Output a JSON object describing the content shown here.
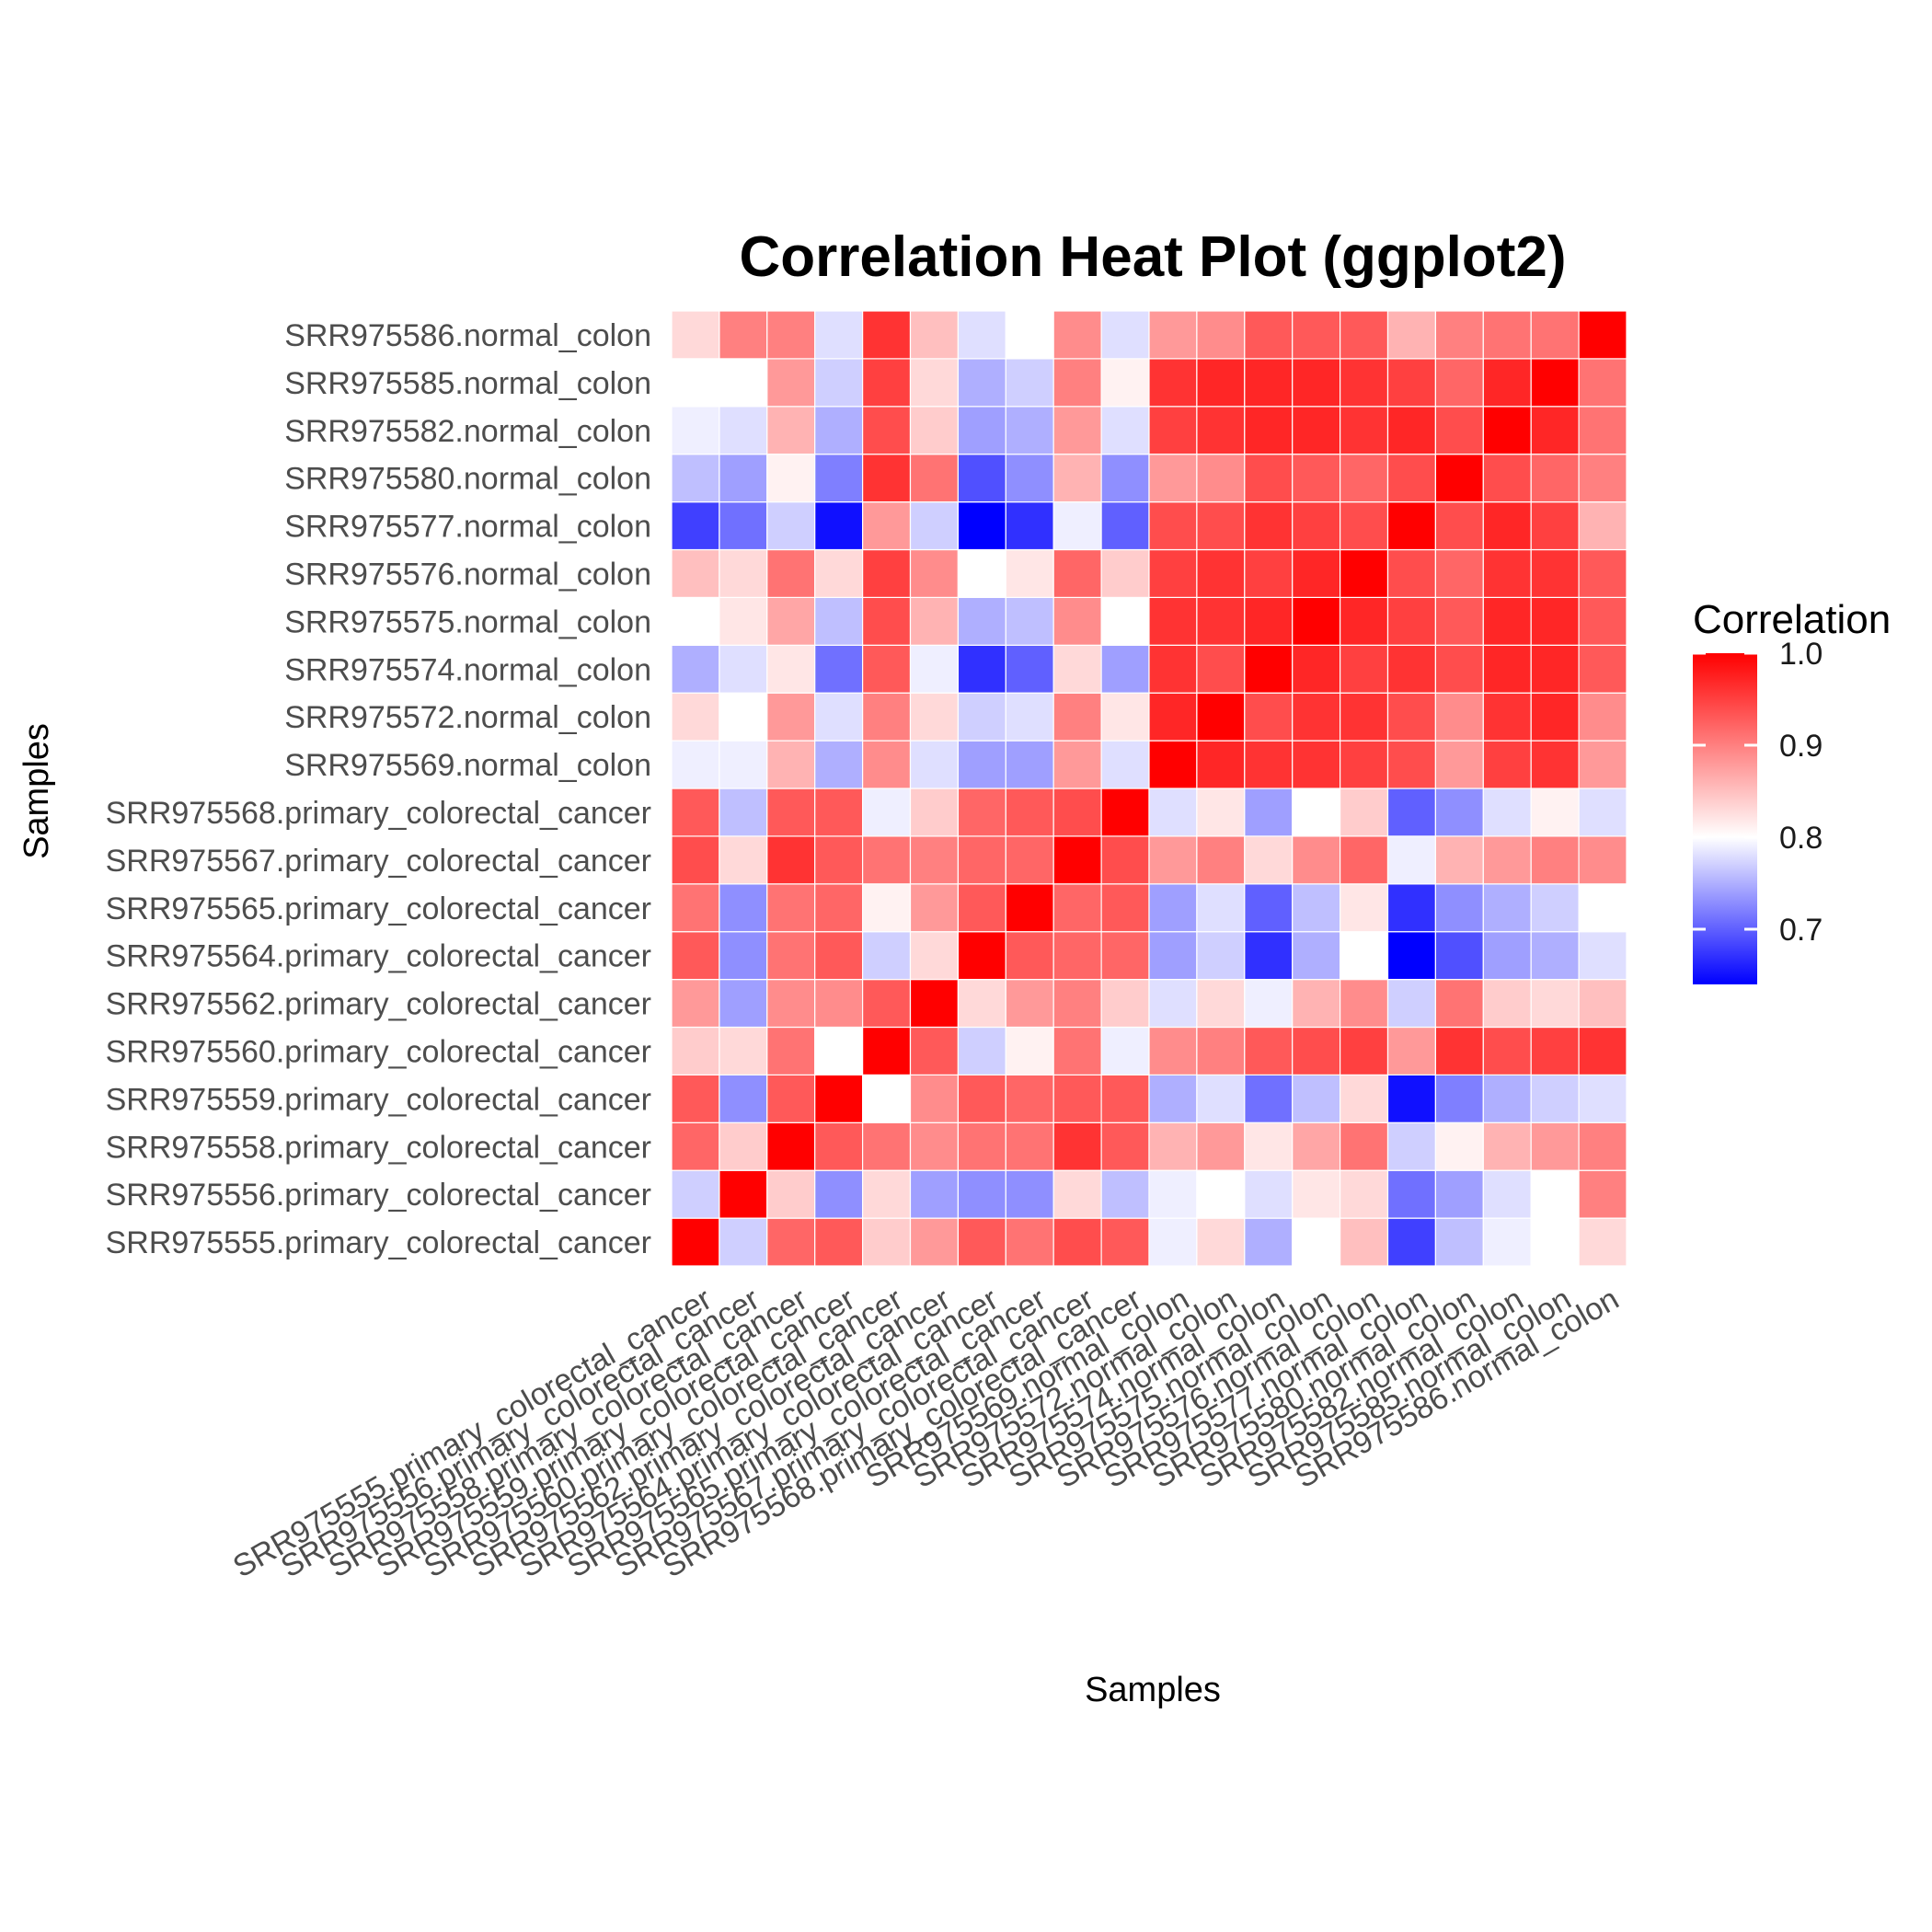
{
  "chart_data": {
    "type": "heatmap",
    "title": "Correlation Heat Plot (ggplot2)",
    "xlabel": "Samples",
    "ylabel": "Samples",
    "samples": [
      "SRR975555.primary_colorectal_cancer",
      "SRR975556.primary_colorectal_cancer",
      "SRR975558.primary_colorectal_cancer",
      "SRR975559.primary_colorectal_cancer",
      "SRR975560.primary_colorectal_cancer",
      "SRR975562.primary_colorectal_cancer",
      "SRR975564.primary_colorectal_cancer",
      "SRR975565.primary_colorectal_cancer",
      "SRR975567.primary_colorectal_cancer",
      "SRR975568.primary_colorectal_cancer",
      "SRR975569.normal_colon",
      "SRR975572.normal_colon",
      "SRR975574.normal_colon",
      "SRR975575.normal_colon",
      "SRR975576.normal_colon",
      "SRR975577.normal_colon",
      "SRR975580.normal_colon",
      "SRR975582.normal_colon",
      "SRR975585.normal_colon",
      "SRR975586.normal_colon"
    ],
    "values": [
      [
        1.0,
        0.77,
        0.92,
        0.93,
        0.84,
        0.88,
        0.93,
        0.91,
        0.94,
        0.93,
        0.79,
        0.83,
        0.75,
        0.8,
        0.85,
        0.68,
        0.76,
        0.79,
        0.8,
        0.83
      ],
      [
        0.77,
        1.0,
        0.84,
        0.73,
        0.83,
        0.74,
        0.73,
        0.73,
        0.83,
        0.76,
        0.79,
        0.8,
        0.78,
        0.82,
        0.83,
        0.71,
        0.74,
        0.78,
        0.8,
        0.9
      ],
      [
        0.92,
        0.84,
        1.0,
        0.93,
        0.91,
        0.89,
        0.91,
        0.91,
        0.96,
        0.93,
        0.86,
        0.88,
        0.82,
        0.87,
        0.91,
        0.77,
        0.81,
        0.86,
        0.88,
        0.9
      ],
      [
        0.93,
        0.73,
        0.93,
        1.0,
        0.8,
        0.89,
        0.93,
        0.92,
        0.93,
        0.93,
        0.75,
        0.78,
        0.71,
        0.76,
        0.83,
        0.65,
        0.72,
        0.75,
        0.77,
        0.78
      ],
      [
        0.84,
        0.83,
        0.91,
        0.8,
        1.0,
        0.93,
        0.77,
        0.81,
        0.91,
        0.79,
        0.89,
        0.9,
        0.93,
        0.94,
        0.95,
        0.88,
        0.96,
        0.94,
        0.95,
        0.96
      ],
      [
        0.88,
        0.74,
        0.89,
        0.89,
        0.93,
        1.0,
        0.83,
        0.88,
        0.9,
        0.84,
        0.78,
        0.83,
        0.79,
        0.86,
        0.89,
        0.77,
        0.91,
        0.84,
        0.83,
        0.85
      ],
      [
        0.93,
        0.73,
        0.91,
        0.93,
        0.77,
        0.83,
        1.0,
        0.93,
        0.92,
        0.92,
        0.74,
        0.77,
        0.67,
        0.75,
        0.8,
        0.64,
        0.69,
        0.74,
        0.75,
        0.78
      ],
      [
        0.91,
        0.73,
        0.91,
        0.92,
        0.81,
        0.88,
        0.93,
        1.0,
        0.92,
        0.93,
        0.74,
        0.78,
        0.7,
        0.76,
        0.82,
        0.67,
        0.73,
        0.75,
        0.77,
        0.8
      ],
      [
        0.94,
        0.83,
        0.96,
        0.93,
        0.91,
        0.9,
        0.92,
        0.92,
        1.0,
        0.94,
        0.88,
        0.9,
        0.83,
        0.89,
        0.92,
        0.79,
        0.86,
        0.88,
        0.9,
        0.89
      ],
      [
        0.93,
        0.76,
        0.93,
        0.93,
        0.79,
        0.84,
        0.92,
        0.93,
        0.94,
        1.0,
        0.78,
        0.82,
        0.74,
        0.8,
        0.84,
        0.7,
        0.73,
        0.78,
        0.81,
        0.78
      ],
      [
        0.79,
        0.79,
        0.86,
        0.75,
        0.89,
        0.78,
        0.74,
        0.74,
        0.88,
        0.78,
        1.0,
        0.97,
        0.96,
        0.96,
        0.95,
        0.94,
        0.88,
        0.95,
        0.96,
        0.88
      ],
      [
        0.83,
        0.8,
        0.88,
        0.78,
        0.9,
        0.83,
        0.77,
        0.78,
        0.9,
        0.82,
        0.97,
        1.0,
        0.94,
        0.96,
        0.96,
        0.94,
        0.89,
        0.96,
        0.97,
        0.89
      ],
      [
        0.75,
        0.78,
        0.82,
        0.71,
        0.93,
        0.79,
        0.67,
        0.7,
        0.83,
        0.74,
        0.96,
        0.94,
        1.0,
        0.97,
        0.95,
        0.96,
        0.94,
        0.97,
        0.97,
        0.93
      ],
      [
        0.8,
        0.82,
        0.87,
        0.76,
        0.94,
        0.86,
        0.75,
        0.76,
        0.89,
        0.8,
        0.96,
        0.96,
        0.97,
        1.0,
        0.97,
        0.95,
        0.93,
        0.97,
        0.97,
        0.93
      ],
      [
        0.85,
        0.83,
        0.91,
        0.83,
        0.95,
        0.89,
        0.8,
        0.82,
        0.92,
        0.84,
        0.95,
        0.96,
        0.95,
        0.97,
        1.0,
        0.94,
        0.92,
        0.96,
        0.96,
        0.93
      ],
      [
        0.68,
        0.71,
        0.77,
        0.65,
        0.88,
        0.77,
        0.64,
        0.67,
        0.79,
        0.7,
        0.94,
        0.94,
        0.96,
        0.95,
        0.94,
        1.0,
        0.94,
        0.97,
        0.95,
        0.86
      ],
      [
        0.76,
        0.74,
        0.81,
        0.72,
        0.96,
        0.91,
        0.69,
        0.73,
        0.86,
        0.73,
        0.88,
        0.89,
        0.94,
        0.93,
        0.92,
        0.94,
        1.0,
        0.94,
        0.92,
        0.9
      ],
      [
        0.79,
        0.78,
        0.86,
        0.75,
        0.94,
        0.84,
        0.74,
        0.75,
        0.88,
        0.78,
        0.95,
        0.96,
        0.97,
        0.97,
        0.96,
        0.97,
        0.94,
        1.0,
        0.97,
        0.91
      ],
      [
        0.8,
        0.8,
        0.88,
        0.77,
        0.95,
        0.83,
        0.75,
        0.77,
        0.9,
        0.81,
        0.96,
        0.97,
        0.97,
        0.97,
        0.96,
        0.95,
        0.92,
        0.97,
        1.0,
        0.91
      ],
      [
        0.83,
        0.9,
        0.9,
        0.78,
        0.96,
        0.85,
        0.78,
        0.8,
        0.89,
        0.78,
        0.88,
        0.89,
        0.93,
        0.93,
        0.93,
        0.86,
        0.9,
        0.91,
        0.91,
        1.0
      ]
    ],
    "color_scale": {
      "low": "#0000ff",
      "mid": "#ffffff",
      "high": "#ff0000",
      "midpoint": 0.8,
      "min": 0.64,
      "max": 1.0
    },
    "legend": {
      "title": "Correlation",
      "ticks": [
        "0.7",
        "0.8",
        "0.9",
        "1.0"
      ],
      "placement": "right"
    },
    "grid": true
  }
}
